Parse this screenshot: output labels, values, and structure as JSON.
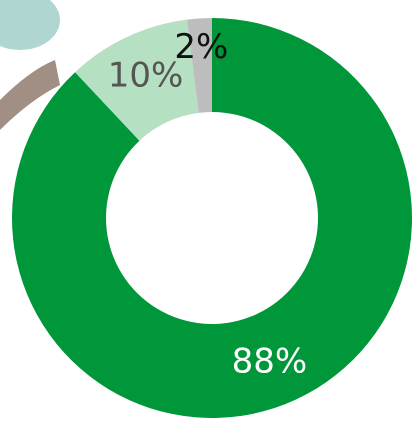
{
  "chart_data": {
    "type": "donut",
    "categories": [
      null,
      null,
      null
    ],
    "values": [
      88,
      2,
      10
    ],
    "value_labels": [
      "88%",
      "2%",
      "10%"
    ],
    "colors": [
      "#00963a",
      "#bdbdbd",
      "#b5e0c2"
    ],
    "label_colors": [
      "#ffffff",
      "#111111",
      "#555555"
    ]
  }
}
